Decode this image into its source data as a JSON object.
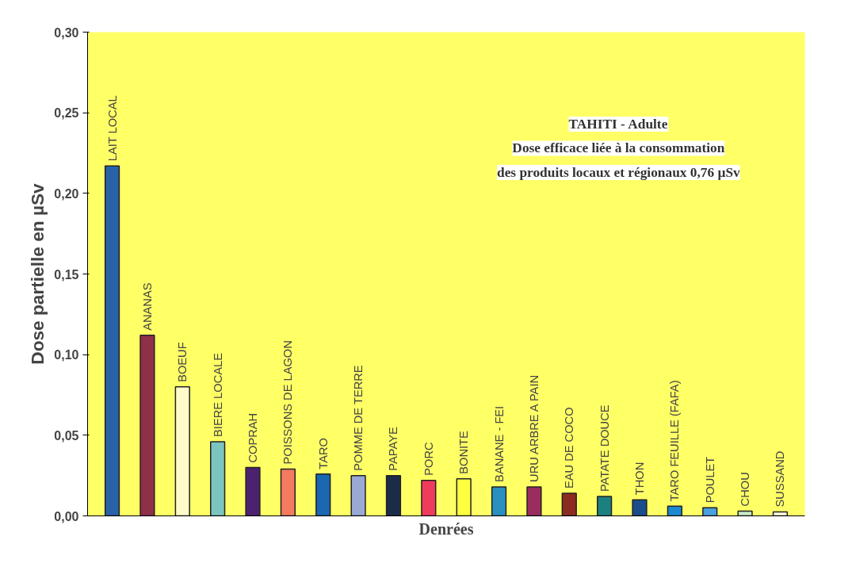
{
  "chart_data": {
    "type": "bar",
    "xlabel": "Denrées",
    "ylabel": "Dose partielle en µSv",
    "categories": [
      "LAIT LOCAL",
      "ANANAS",
      "BOEUF",
      "BIERE LOCALE",
      "COPRAH",
      "POISSONS DE LAGON",
      "TARO",
      "POMME DE TERRE",
      "PAPAYE",
      "PORC",
      "BONITE",
      "BANANE - FEI",
      "URU ARBRE A PAIN",
      "EAU DE COCO",
      "PATATE DOUCE",
      "THON",
      "TARO FEUILLE (FAFA)",
      "POULET",
      "CHOU",
      "SUSSAND"
    ],
    "values": [
      0.217,
      0.112,
      0.08,
      0.046,
      0.03,
      0.029,
      0.026,
      0.025,
      0.025,
      0.022,
      0.023,
      0.018,
      0.018,
      0.014,
      0.012,
      0.01,
      0.006,
      0.005,
      0.003,
      0.0025
    ],
    "colors": [
      "#2a62a8",
      "#8e3048",
      "#fffbc8",
      "#7cc4c0",
      "#4c2270",
      "#f47a60",
      "#1a68b0",
      "#9aa8d4",
      "#1c2c48",
      "#f03c5c",
      "#ffff40",
      "#2a90c0",
      "#9a2c60",
      "#8c2c20",
      "#1c8080",
      "#1c4c8c",
      "#1c88d0",
      "#48a0e0",
      "#c8e8c8",
      "#fffce0"
    ],
    "ylim": [
      0,
      0.3
    ],
    "yticks": [
      {
        "value": 0,
        "label": "0,00"
      },
      {
        "value": 0.05,
        "label": "0,05"
      },
      {
        "value": 0.1,
        "label": "0,10"
      },
      {
        "value": 0.15,
        "label": "0,15"
      },
      {
        "value": 0.2,
        "label": "0,20"
      },
      {
        "value": 0.25,
        "label": "0,25"
      },
      {
        "value": 0.3,
        "label": "0,30"
      }
    ],
    "tick_labels": "y",
    "grid": false,
    "annotations": [
      "TAHITI - Adulte",
      "Dose efficace liée à la consommation",
      "des produits locaux et régionaux 0,76 µSv"
    ]
  }
}
